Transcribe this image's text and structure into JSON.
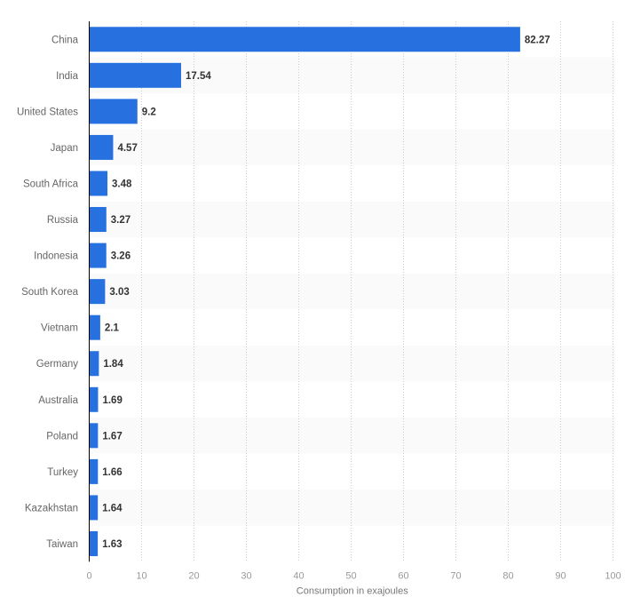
{
  "chart_data": {
    "type": "bar",
    "orientation": "horizontal",
    "categories": [
      "China",
      "India",
      "United States",
      "Japan",
      "South Africa",
      "Russia",
      "Indonesia",
      "South Korea",
      "Vietnam",
      "Germany",
      "Australia",
      "Poland",
      "Turkey",
      "Kazakhstan",
      "Taiwan"
    ],
    "values": [
      82.27,
      17.54,
      9.2,
      4.57,
      3.48,
      3.27,
      3.26,
      3.03,
      2.1,
      1.84,
      1.69,
      1.67,
      1.66,
      1.64,
      1.63
    ],
    "value_labels": [
      "82.27",
      "17.54",
      "9.2",
      "4.57",
      "3.48",
      "3.27",
      "3.26",
      "3.03",
      "2.1",
      "1.84",
      "1.69",
      "1.67",
      "1.66",
      "1.64",
      "1.63"
    ],
    "xlabel": "Consumption in exajoules",
    "ylabel": "",
    "xlim": [
      0,
      100
    ],
    "ticks": [
      "0",
      "10",
      "20",
      "30",
      "40",
      "50",
      "60",
      "70",
      "80",
      "90",
      "100"
    ],
    "grid": true,
    "bar_color": "#2670e0",
    "stripe_color": "#fafafa"
  }
}
